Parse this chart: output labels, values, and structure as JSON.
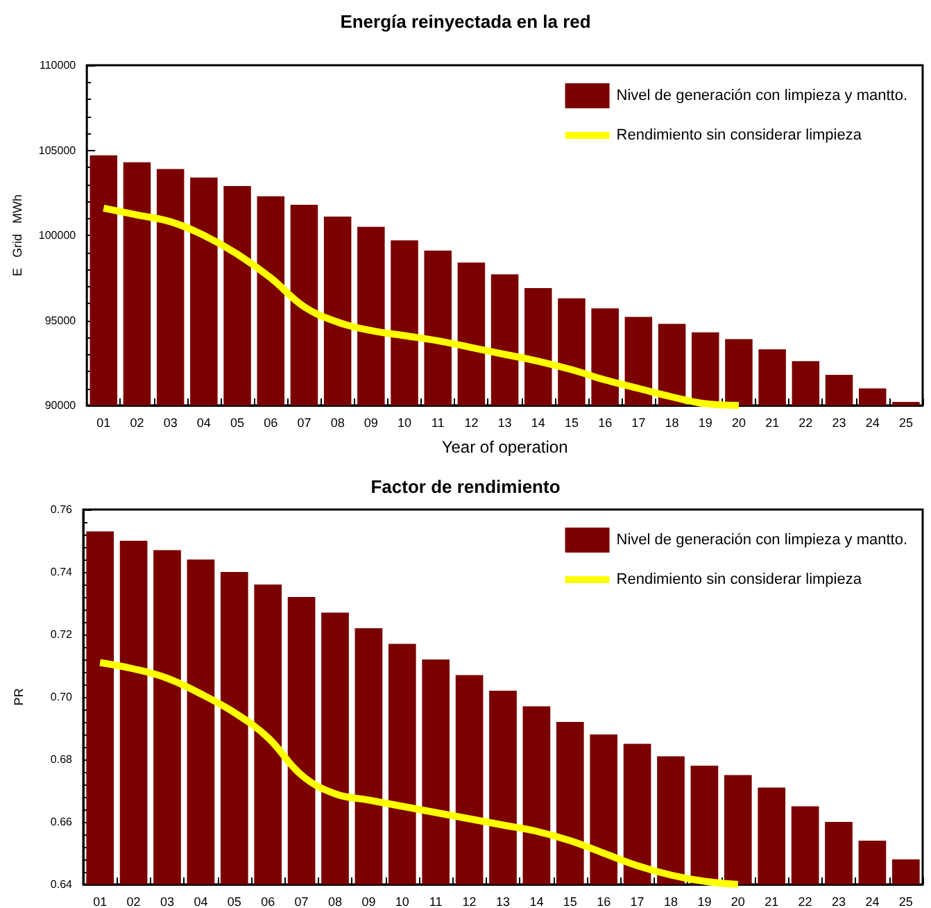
{
  "chart_data": [
    {
      "type": "bar",
      "title": "Energía reinyectada en la red",
      "xlabel": "Year of operation",
      "ylabel": "E   Grid   MWh",
      "categories": [
        "01",
        "02",
        "03",
        "04",
        "05",
        "06",
        "07",
        "08",
        "09",
        "10",
        "11",
        "12",
        "13",
        "14",
        "15",
        "16",
        "17",
        "18",
        "19",
        "20",
        "21",
        "22",
        "23",
        "24",
        "25"
      ],
      "series": [
        {
          "name": "Nivel de generación con limpieza y mantto.",
          "color": "#7b0000",
          "values": [
            104700,
            104300,
            103900,
            103400,
            102900,
            102300,
            101800,
            101100,
            100500,
            99700,
            99100,
            98400,
            97700,
            96900,
            96300,
            95700,
            95200,
            94800,
            94300,
            93900,
            93300,
            92600,
            91800,
            91000,
            90200
          ]
        },
        {
          "name": "Rendimiento sin considerar limpieza",
          "type": "line",
          "color": "#ffff00",
          "values": [
            101600,
            101200,
            100800,
            100000,
            98900,
            97500,
            95800,
            94900,
            94400,
            94100,
            93800,
            93400,
            93000,
            92600,
            92100,
            91500,
            91000,
            90500,
            90100,
            90000,
            null,
            null,
            null,
            null,
            null
          ]
        }
      ],
      "ylim": [
        90000,
        110000
      ],
      "yticks": [
        90000,
        95000,
        100000,
        105000,
        110000
      ],
      "grid": false,
      "legend": "top right",
      "marker": "none"
    },
    {
      "type": "bar",
      "title": "Factor de rendimiento",
      "ylabel": "PR",
      "categories": [
        "01",
        "02",
        "03",
        "04",
        "05",
        "06",
        "07",
        "08",
        "09",
        "10",
        "11",
        "12",
        "13",
        "14",
        "15",
        "16",
        "17",
        "18",
        "19",
        "20",
        "21",
        "22",
        "23",
        "24",
        "25"
      ],
      "series": [
        {
          "name": "Nivel de generación con limpieza y mantto.",
          "color": "#7b0000",
          "values": [
            0.753,
            0.75,
            0.747,
            0.744,
            0.74,
            0.736,
            0.732,
            0.727,
            0.722,
            0.717,
            0.712,
            0.707,
            0.702,
            0.697,
            0.692,
            0.688,
            0.685,
            0.681,
            0.678,
            0.675,
            0.671,
            0.665,
            0.66,
            0.654,
            0.648
          ]
        },
        {
          "name": "Rendimiento sin considerar limpieza",
          "type": "line",
          "color": "#ffff00",
          "values": [
            0.711,
            0.709,
            0.706,
            0.701,
            0.695,
            0.687,
            0.675,
            0.669,
            0.667,
            0.665,
            0.663,
            0.661,
            0.659,
            0.657,
            0.654,
            0.65,
            0.646,
            0.643,
            0.641,
            0.64,
            null,
            null,
            null,
            null,
            null
          ]
        }
      ],
      "ylim": [
        0.64,
        0.76
      ],
      "yticks": [
        {
          "value": 0.64,
          "label": "0.64"
        },
        {
          "value": 0.66,
          "label": "0.66"
        },
        {
          "value": 0.68,
          "label": "0.68"
        },
        {
          "value": 0.7,
          "label": "0.70"
        },
        {
          "value": 0.72,
          "label": "0.72"
        },
        {
          "value": 0.74,
          "label": "0.74"
        },
        {
          "value": 0.76,
          "label": "0.76"
        }
      ],
      "grid": false,
      "legend": "top right",
      "marker": "none"
    }
  ]
}
